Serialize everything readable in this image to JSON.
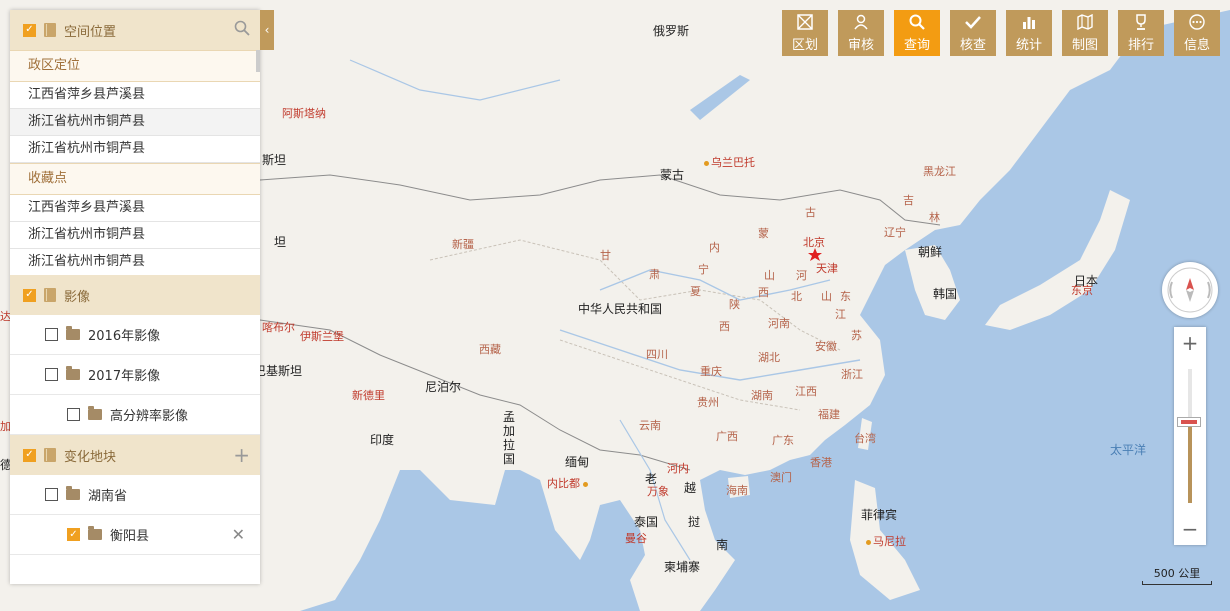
{
  "panel": {
    "spatial": {
      "title": "空间位置"
    },
    "admin": {
      "title": "政区定位",
      "items": [
        "江西省萍乡县芦溪县",
        "浙江省杭州市铜芦县",
        "浙江省杭州市铜芦县"
      ]
    },
    "favorites": {
      "title": "收藏点",
      "items": [
        "江西省萍乡县芦溪县",
        "浙江省杭州市铜芦县",
        "浙江省杭州市铜芦县"
      ]
    },
    "imagery": {
      "title": "影像",
      "f1": "2016年影像",
      "f2": "2017年影像",
      "f3": "高分辨率影像"
    },
    "change": {
      "title": "变化地块",
      "f1": "湖南省",
      "f2": "衡阳县"
    }
  },
  "toolbar": [
    "区划",
    "审核",
    "查询",
    "核查",
    "统计",
    "制图",
    "排行",
    "信息"
  ],
  "toolbar_active": "查询",
  "scale": "500 公里",
  "map_labels": {
    "russia": "俄罗斯",
    "mongolia": "蒙古",
    "china": "中华人民共和国",
    "japan": "日本",
    "north_korea": "朝鲜",
    "south_korea": "韩国",
    "nepal": "尼泊尔",
    "india": "印度",
    "bangladesh": "孟\n加\n拉\n国",
    "myanmar": "缅甸",
    "thailand": "泰国",
    "cambodia": "柬埔寨",
    "philippines": "菲律宾",
    "laos": "老",
    "vietnam1": "越",
    "vietnam2": "挝",
    "vietnam3": "南",
    "kazakh_part": "斯坦",
    "tajik_part": "坦",
    "pak_part": "巴基斯坦",
    "pacific": "太平洋",
    "heilongjiang": "黑龙江",
    "jilin": "吉",
    "lin": "林",
    "liaoning": "辽宁",
    "xinjiang": "新疆",
    "xizang": "西藏",
    "gan": "甘",
    "su": "肃",
    "ning": "宁",
    "xia": "夏",
    "nei": "内",
    "meng": "蒙",
    "gu": "古",
    "shan": "陕",
    "xi2": "西",
    "shan2": "山",
    "xi3": "西",
    "he": "河",
    "bei": "北",
    "shan3": "山",
    "dong": "东",
    "jiang": "江",
    "su2": "苏",
    "henan": "河南",
    "anhui": "安徽",
    "sichuan": "四川",
    "chongqing": "重庆",
    "hubei": "湖北",
    "zhejiang": "浙江",
    "guizhou": "贵州",
    "hunan": "湖南",
    "jiangxi": "江西",
    "fujian": "福建",
    "yunnan": "云南",
    "guangxi": "广西",
    "guangdong": "广东",
    "taiwan": "台湾",
    "hongkong": "香港",
    "macao": "澳门",
    "hainan": "海南",
    "beijing": "北京",
    "tianjin": "天津",
    "ulan": "乌兰巴托",
    "astana": "阿斯塔纳",
    "kashgar": "喀布尔",
    "islamabad": "伊斯兰堡",
    "newdelhi": "新德里",
    "naypyidaw": "内比都",
    "vientiane": "万象",
    "hanoi": "河内",
    "bangkok": "曼谷",
    "manila": "马尼拉",
    "tokyo": "东京",
    "seoul_city": "",
    "dai": "达",
    "jia": "加",
    "de": "德"
  }
}
